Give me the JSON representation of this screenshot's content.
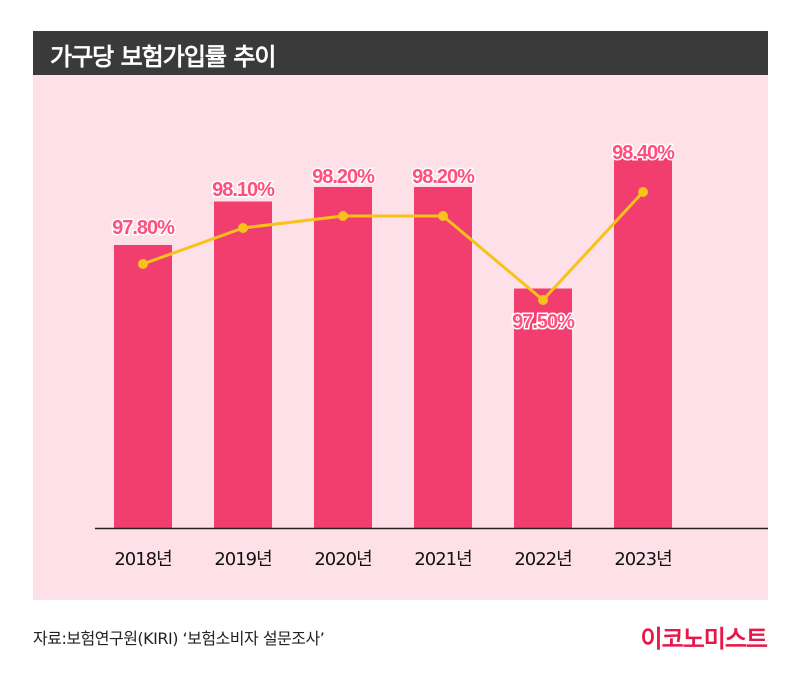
{
  "header": {
    "title": "가구당 보험가입률 추이"
  },
  "footer": {
    "source": "자료:보험연구원(KIRI) ‘보험소비자 설문조사’",
    "logo_text": "이코노미스트"
  },
  "colors": {
    "bar": "#f23e6e",
    "line": "#f7c21a",
    "background": "#fde0e8",
    "label_fill": "#ff4f7d",
    "title_bar": "#3a3a3a"
  },
  "chart_data": {
    "type": "bar",
    "title": "가구당 보험가입률 추이",
    "categories": [
      "2018년",
      "2019년",
      "2020년",
      "2021년",
      "2022년",
      "2023년"
    ],
    "series": [
      {
        "values": [
          97.8,
          98.1,
          98.2,
          98.2,
          97.5,
          98.4
        ]
      }
    ],
    "data_labels": [
      "97.80%",
      "98.10%",
      "98.20%",
      "98.20%",
      "97.50%",
      "98.40%"
    ],
    "overlay": "line",
    "grid": false,
    "legend": "none"
  }
}
